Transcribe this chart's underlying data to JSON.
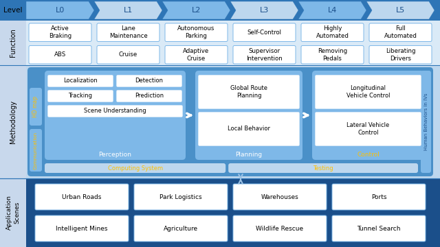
{
  "bg_color": "#C8D8EC",
  "dark_blue": "#1B4F8A",
  "mid_blue": "#2E75B6",
  "light_blue": "#4A90C8",
  "lighter_blue": "#7EB8E8",
  "lightest_blue": "#BDD7EE",
  "very_light_blue": "#DAEAF7",
  "white": "#FFFFFF",
  "yellow": "#FFC000",
  "arrow_blue": "#9DC3E6",
  "level_bg": "#4A90C8",
  "levels": [
    "L0",
    "L1",
    "L2",
    "L3",
    "L4",
    "L5"
  ],
  "function_top": [
    "Active\nBraking",
    "Lane\nMaintenance",
    "Autonomous\nParking",
    "Self-Control",
    "Highly\nAutomated",
    "Full\nAutomated"
  ],
  "function_bottom": [
    "ABS",
    "Cruise",
    "Adaptive\nCruise",
    "Supervisor\nIntervention",
    "Removing\nPedals",
    "Liberating\nDrivers"
  ],
  "app_top": [
    "Urban Roads",
    "Park Logistics",
    "Warehouses",
    "Ports"
  ],
  "app_bottom": [
    "Intelligent Mines",
    "Agriculture",
    "Wildlife Rescue",
    "Tunnel Search"
  ]
}
